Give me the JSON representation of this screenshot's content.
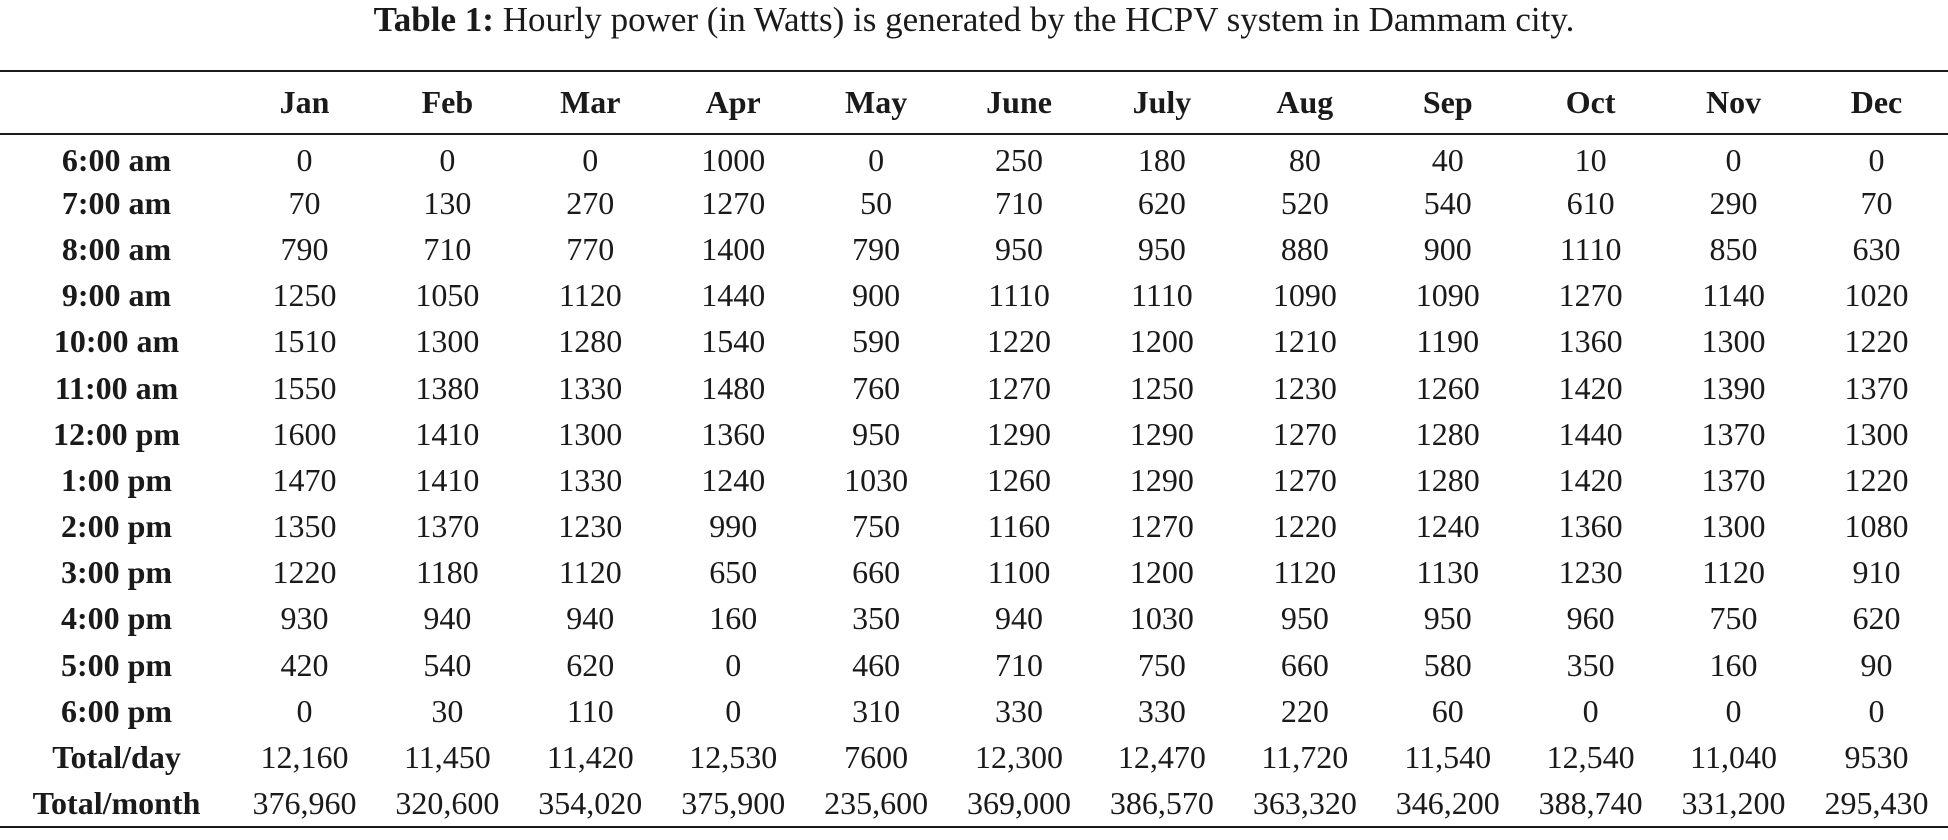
{
  "caption": {
    "label": "Table 1:",
    "text": "Hourly power (in Watts) is generated by the HCPV system in Dammam city."
  },
  "table": {
    "corner": "",
    "columns": [
      "Jan",
      "Feb",
      "Mar",
      "Apr",
      "May",
      "June",
      "July",
      "Aug",
      "Sep",
      "Oct",
      "Nov",
      "Dec"
    ],
    "rows": [
      {
        "label": "6:00 am",
        "cells": [
          "0",
          "0",
          "0",
          "1000",
          "0",
          "250",
          "180",
          "80",
          "40",
          "10",
          "0",
          "0"
        ]
      },
      {
        "label": "7:00 am",
        "cells": [
          "70",
          "130",
          "270",
          "1270",
          "50",
          "710",
          "620",
          "520",
          "540",
          "610",
          "290",
          "70"
        ]
      },
      {
        "label": "8:00 am",
        "cells": [
          "790",
          "710",
          "770",
          "1400",
          "790",
          "950",
          "950",
          "880",
          "900",
          "1110",
          "850",
          "630"
        ]
      },
      {
        "label": "9:00 am",
        "cells": [
          "1250",
          "1050",
          "1120",
          "1440",
          "900",
          "1110",
          "1110",
          "1090",
          "1090",
          "1270",
          "1140",
          "1020"
        ]
      },
      {
        "label": "10:00 am",
        "cells": [
          "1510",
          "1300",
          "1280",
          "1540",
          "590",
          "1220",
          "1200",
          "1210",
          "1190",
          "1360",
          "1300",
          "1220"
        ]
      },
      {
        "label": "11:00 am",
        "cells": [
          "1550",
          "1380",
          "1330",
          "1480",
          "760",
          "1270",
          "1250",
          "1230",
          "1260",
          "1420",
          "1390",
          "1370"
        ]
      },
      {
        "label": "12:00 pm",
        "cells": [
          "1600",
          "1410",
          "1300",
          "1360",
          "950",
          "1290",
          "1290",
          "1270",
          "1280",
          "1440",
          "1370",
          "1300"
        ]
      },
      {
        "label": "1:00 pm",
        "cells": [
          "1470",
          "1410",
          "1330",
          "1240",
          "1030",
          "1260",
          "1290",
          "1270",
          "1280",
          "1420",
          "1370",
          "1220"
        ]
      },
      {
        "label": "2:00 pm",
        "cells": [
          "1350",
          "1370",
          "1230",
          "990",
          "750",
          "1160",
          "1270",
          "1220",
          "1240",
          "1360",
          "1300",
          "1080"
        ]
      },
      {
        "label": "3:00 pm",
        "cells": [
          "1220",
          "1180",
          "1120",
          "650",
          "660",
          "1100",
          "1200",
          "1120",
          "1130",
          "1230",
          "1120",
          "910"
        ]
      },
      {
        "label": "4:00 pm",
        "cells": [
          "930",
          "940",
          "940",
          "160",
          "350",
          "940",
          "1030",
          "950",
          "950",
          "960",
          "750",
          "620"
        ]
      },
      {
        "label": "5:00 pm",
        "cells": [
          "420",
          "540",
          "620",
          "0",
          "460",
          "710",
          "750",
          "660",
          "580",
          "350",
          "160",
          "90"
        ]
      },
      {
        "label": "6:00 pm",
        "cells": [
          "0",
          "30",
          "110",
          "0",
          "310",
          "330",
          "330",
          "220",
          "60",
          "0",
          "0",
          "0"
        ]
      },
      {
        "label": "Total/day",
        "cells": [
          "12,160",
          "11,450",
          "11,420",
          "12,530",
          "7600",
          "12,300",
          "12,470",
          "11,720",
          "11,540",
          "12,540",
          "11,040",
          "9530"
        ]
      },
      {
        "label": "Total/month",
        "cells": [
          "376,960",
          "320,600",
          "354,020",
          "375,900",
          "235,600",
          "369,000",
          "386,570",
          "363,320",
          "346,200",
          "388,740",
          "331,200",
          "295,430"
        ]
      }
    ]
  }
}
